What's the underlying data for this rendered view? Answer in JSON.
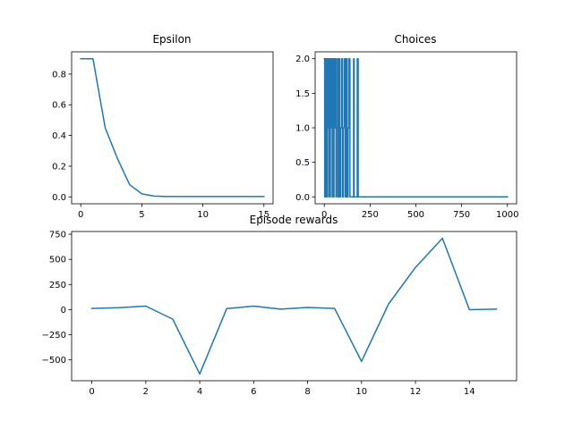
{
  "chart_data": [
    {
      "type": "line",
      "title": "Epsilon",
      "xlabel": "",
      "ylabel": "",
      "x": [
        0,
        1,
        2,
        3,
        4,
        5,
        6,
        7,
        8,
        9,
        10,
        11,
        12,
        13,
        14,
        15
      ],
      "series": [
        {
          "values": [
            0.9,
            0.9,
            0.45,
            0.25,
            0.08,
            0.02,
            0.005,
            0.002,
            0.002,
            0.002,
            0.002,
            0.002,
            0.002,
            0.002,
            0.002,
            0.002
          ]
        }
      ],
      "xlim": [
        -0.75,
        15.75
      ],
      "ylim": [
        -0.045,
        0.945
      ],
      "xticks": [
        0,
        5,
        10,
        15
      ],
      "yticks": [
        0.0,
        0.2,
        0.4,
        0.6,
        0.8
      ],
      "xtick_labels": [
        "0",
        "5",
        "10",
        "15"
      ],
      "ytick_labels": [
        "0.0",
        "0.2",
        "0.4",
        "0.6",
        "0.8"
      ],
      "grid": false,
      "color": "#1f77b4"
    },
    {
      "type": "line",
      "title": "Choices",
      "xlabel": "",
      "ylabel": "",
      "x": [
        0,
        2,
        2,
        5,
        5,
        8,
        8,
        10,
        10,
        12,
        12,
        15,
        15,
        18,
        18,
        21,
        21,
        24,
        24,
        27,
        27,
        30,
        30,
        33,
        33,
        36,
        36,
        40,
        40,
        43,
        43,
        47,
        47,
        50,
        50,
        53,
        53,
        57,
        57,
        60,
        60,
        64,
        64,
        68,
        68,
        72,
        72,
        76,
        76,
        80,
        80,
        85,
        85,
        90,
        90,
        95,
        95,
        100,
        100,
        105,
        105,
        110,
        110,
        115,
        115,
        120,
        120,
        125,
        125,
        130,
        130,
        135,
        135,
        140,
        140,
        160,
        160,
        163,
        163,
        165,
        165,
        180,
        180,
        185,
        185,
        1000
      ],
      "series": [
        {
          "values": [
            2,
            2,
            0,
            0,
            2,
            2,
            0,
            0,
            2,
            2,
            0,
            0,
            2,
            2,
            1,
            1,
            2,
            2,
            0,
            0,
            2,
            2,
            0,
            0,
            2,
            2,
            1,
            1,
            2,
            2,
            0,
            0,
            2,
            2,
            0,
            0,
            2,
            2,
            1,
            1,
            2,
            2,
            0,
            0,
            1,
            1,
            2,
            2,
            0,
            0,
            2,
            2,
            0,
            0,
            1,
            1,
            2,
            2,
            0,
            0,
            1,
            1,
            2,
            2,
            0,
            0,
            2,
            2,
            0,
            0,
            1,
            1,
            2,
            2,
            0,
            0,
            2,
            2,
            0,
            0,
            0,
            0,
            2,
            2,
            0,
            0
          ]
        }
      ],
      "xlim": [
        -50,
        1050
      ],
      "ylim": [
        -0.1,
        2.1
      ],
      "xticks": [
        0,
        250,
        500,
        750,
        1000
      ],
      "yticks": [
        0.0,
        0.5,
        1.0,
        1.5,
        2.0
      ],
      "xtick_labels": [
        "0",
        "250",
        "500",
        "750",
        "1000"
      ],
      "ytick_labels": [
        "0.0",
        "0.5",
        "1.0",
        "1.5",
        "2.0"
      ],
      "grid": false,
      "color": "#1f77b4"
    },
    {
      "type": "line",
      "title": "Episode rewards",
      "xlabel": "",
      "ylabel": "",
      "x": [
        0,
        1,
        2,
        3,
        4,
        5,
        6,
        7,
        8,
        9,
        10,
        11,
        12,
        13,
        14,
        15
      ],
      "series": [
        {
          "values": [
            12,
            20,
            35,
            -95,
            -640,
            10,
            35,
            5,
            22,
            12,
            -515,
            55,
            420,
            710,
            0,
            5
          ]
        }
      ],
      "xlim": [
        -0.75,
        15.75
      ],
      "ylim": [
        -707.5,
        777.5
      ],
      "xticks": [
        0,
        2,
        4,
        6,
        8,
        10,
        12,
        14
      ],
      "yticks": [
        -500,
        -250,
        0,
        250,
        500,
        750
      ],
      "xtick_labels": [
        "0",
        "2",
        "4",
        "6",
        "8",
        "10",
        "12",
        "14"
      ],
      "ytick_labels": [
        "−500",
        "−250",
        "0",
        "250",
        "500",
        "750"
      ],
      "grid": false,
      "color": "#1f77b4"
    }
  ]
}
